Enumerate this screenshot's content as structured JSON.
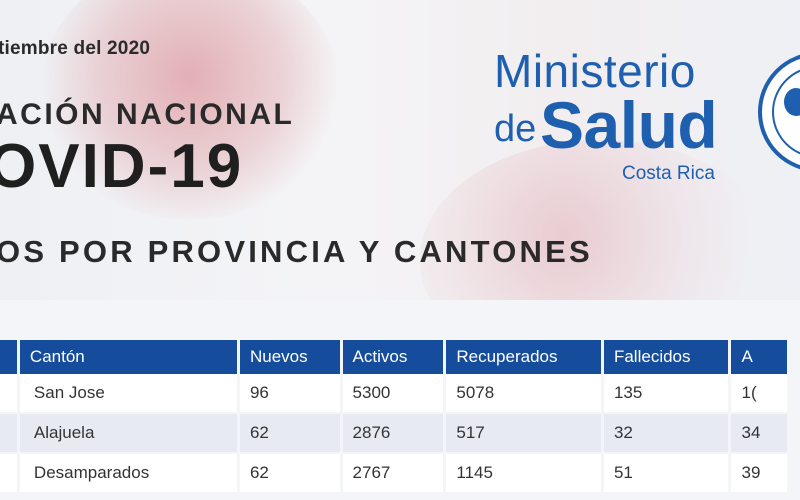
{
  "header": {
    "date": "tiembre del 2020",
    "report_title": "ACIÓN NACIONAL",
    "covid_title": "OVID-19",
    "section_title": "OS POR PROVINCIA Y CANTONES"
  },
  "logo": {
    "line1": "Ministerio",
    "line2_small": "de",
    "line2_big": "Salud",
    "country": "Costa Rica"
  },
  "colors": {
    "brand_blue": "#1f5fb0",
    "table_header": "#154d9c"
  },
  "table": {
    "columns": [
      "",
      "Cantón",
      "Nuevos",
      "Activos",
      "Recuperados",
      "Fallecidos",
      "A"
    ],
    "rows": [
      [
        "",
        "San Jose",
        "96",
        "5300",
        "5078",
        "135",
        "1("
      ],
      [
        "",
        "Alajuela",
        "62",
        "2876",
        "517",
        "32",
        "34"
      ],
      [
        "",
        "Desamparados",
        "62",
        "2767",
        "1145",
        "51",
        "39"
      ]
    ]
  }
}
